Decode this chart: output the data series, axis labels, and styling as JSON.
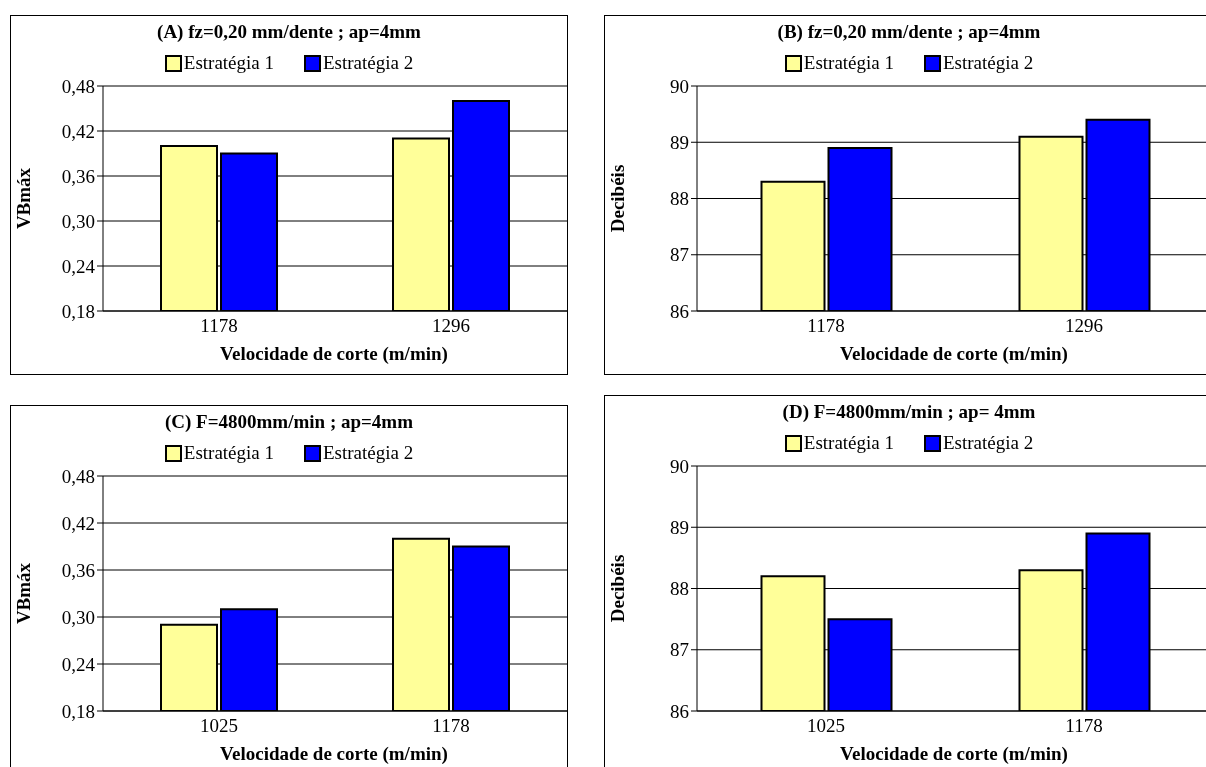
{
  "chart_data": [
    {
      "type": "bar",
      "title": "(A) fz=0,20 mm/dente ; ap=4mm",
      "xlabel": "Velocidade de corte (m/min)",
      "ylabel": "VBmáx",
      "categories": [
        "1178",
        "1296"
      ],
      "series": [
        {
          "name": "Estratégia 1",
          "color": "#ffff99",
          "values": [
            0.4,
            0.41
          ]
        },
        {
          "name": "Estratégia 2",
          "color": "#0000ff",
          "values": [
            0.39,
            0.46
          ]
        }
      ],
      "ylim": [
        0.18,
        0.48
      ],
      "yticks": [
        {
          "value": 0.18,
          "label": "0,18"
        },
        {
          "value": 0.24,
          "label": "0,24"
        },
        {
          "value": 0.3,
          "label": "0,30"
        },
        {
          "value": 0.36,
          "label": "0,36"
        },
        {
          "value": 0.42,
          "label": "0,42"
        },
        {
          "value": 0.48,
          "label": "0,48"
        }
      ],
      "grid": "y",
      "legend": "top"
    },
    {
      "type": "bar",
      "title": "(B) fz=0,20 mm/dente ; ap=4mm",
      "xlabel": "Velocidade de corte (m/min)",
      "ylabel": "Decibéis",
      "categories": [
        "1178",
        "1296"
      ],
      "series": [
        {
          "name": "Estratégia 1",
          "color": "#ffff99",
          "values": [
            88.3,
            89.1
          ]
        },
        {
          "name": "Estratégia 2",
          "color": "#0000ff",
          "values": [
            88.9,
            89.4
          ]
        }
      ],
      "ylim": [
        86,
        90
      ],
      "yticks": [
        86,
        87,
        88,
        89,
        90
      ],
      "grid": "y",
      "legend": "top"
    },
    {
      "type": "bar",
      "title": "(C) F=4800mm/min ; ap=4mm",
      "xlabel": "Velocidade de corte (m/min)",
      "ylabel": "VBmáx",
      "categories": [
        "1025",
        "1178"
      ],
      "series": [
        {
          "name": "Estratégia 1",
          "color": "#ffff99",
          "values": [
            0.29,
            0.4
          ]
        },
        {
          "name": "Estratégia 2",
          "color": "#0000ff",
          "values": [
            0.31,
            0.39
          ]
        }
      ],
      "ylim": [
        0.18,
        0.48
      ],
      "yticks": [
        {
          "value": 0.18,
          "label": "0,18"
        },
        {
          "value": 0.24,
          "label": "0,24"
        },
        {
          "value": 0.3,
          "label": "0,30"
        },
        {
          "value": 0.36,
          "label": "0,36"
        },
        {
          "value": 0.42,
          "label": "0,42"
        },
        {
          "value": 0.48,
          "label": "0,48"
        }
      ],
      "grid": "y",
      "legend": "top"
    },
    {
      "type": "bar",
      "title": "(D) F=4800mm/min ; ap= 4mm",
      "xlabel": "Velocidade de corte (m/min)",
      "ylabel": "Decibéis",
      "categories": [
        "1025",
        "1178"
      ],
      "series": [
        {
          "name": "Estratégia 1",
          "color": "#ffff99",
          "values": [
            88.2,
            88.3
          ]
        },
        {
          "name": "Estratégia 2",
          "color": "#0000ff",
          "values": [
            87.5,
            88.9
          ]
        }
      ],
      "ylim": [
        86,
        90
      ],
      "yticks": [
        86,
        87,
        88,
        89,
        90
      ],
      "grid": "y",
      "legend": "top"
    }
  ]
}
